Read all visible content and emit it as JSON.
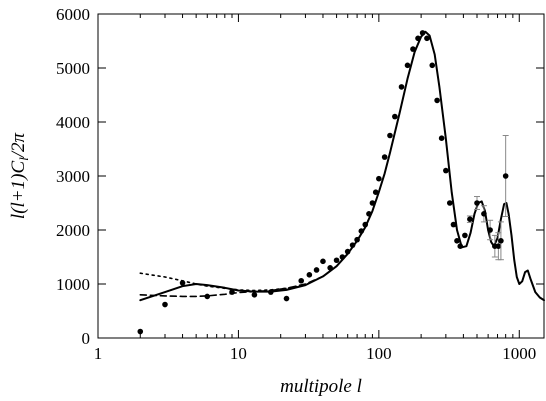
{
  "chart_data": {
    "type": "line",
    "title": "",
    "xlabel": "multipole  l",
    "ylabel": "l(l+1)C_l/2π",
    "ylabel_parts": {
      "main": "l(l+1)C",
      "sub": "l",
      "tail": "/2π"
    },
    "xscale": "log",
    "xlim": [
      1,
      1500
    ],
    "ylim": [
      0,
      6000
    ],
    "x_ticks": [
      1,
      10,
      100,
      1000
    ],
    "x_tick_labels": [
      "1",
      "10",
      "100",
      "1000"
    ],
    "y_ticks": [
      0,
      1000,
      2000,
      3000,
      4000,
      5000,
      6000
    ],
    "y_tick_labels": [
      "0",
      "1000",
      "2000",
      "3000",
      "4000",
      "5000",
      "6000"
    ],
    "grid": false,
    "legend": "none",
    "series": [
      {
        "style": "solid",
        "x": [
          2,
          3,
          4,
          5,
          6,
          8,
          10,
          13,
          17,
          22,
          30,
          40,
          50,
          60,
          70,
          80,
          90,
          100,
          110,
          120,
          140,
          160,
          180,
          200,
          215,
          230,
          250,
          270,
          300,
          330,
          360,
          390,
          420,
          450,
          480,
          510,
          540,
          570,
          600,
          630,
          660,
          700,
          740,
          780,
          810,
          840,
          880,
          920,
          960,
          1000,
          1050,
          1100,
          1150,
          1200,
          1300,
          1400,
          1500
        ],
        "y": [
          700,
          850,
          960,
          1000,
          980,
          930,
          880,
          860,
          860,
          890,
          980,
          1140,
          1330,
          1560,
          1800,
          2050,
          2350,
          2700,
          3050,
          3430,
          4150,
          4800,
          5300,
          5580,
          5670,
          5600,
          5250,
          4650,
          3700,
          2700,
          2000,
          1680,
          1700,
          1950,
          2300,
          2500,
          2530,
          2350,
          2000,
          1780,
          1700,
          1850,
          2200,
          2480,
          2500,
          2300,
          1900,
          1450,
          1130,
          1000,
          1050,
          1220,
          1250,
          1100,
          850,
          750,
          700
        ]
      },
      {
        "style": "dashed",
        "x": [
          2,
          3,
          4,
          5,
          6,
          8,
          10,
          13,
          17,
          22,
          30,
          40,
          50
        ],
        "y": [
          800,
          780,
          770,
          770,
          780,
          810,
          840,
          860,
          880,
          920,
          1000,
          1140,
          1330
        ]
      },
      {
        "style": "dotted",
        "x": [
          2,
          3,
          4,
          5,
          6,
          8,
          10,
          13,
          17,
          22,
          30
        ],
        "y": [
          1200,
          1130,
          1060,
          1000,
          960,
          920,
          890,
          880,
          890,
          920,
          980
        ]
      }
    ],
    "points": {
      "x": [
        2,
        3,
        4,
        6,
        9,
        13,
        17,
        22,
        28,
        32,
        36,
        40,
        45,
        50,
        55,
        60,
        65,
        70,
        75,
        80,
        85,
        90,
        95,
        100,
        110,
        120,
        130,
        145,
        160,
        175,
        190,
        205,
        220,
        240,
        260,
        280,
        300,
        320,
        340,
        360,
        380,
        410,
        445,
        500,
        560,
        620,
        670,
        710,
        740,
        800
      ],
      "y": [
        120,
        620,
        1020,
        770,
        850,
        800,
        850,
        730,
        1060,
        1170,
        1260,
        1420,
        1300,
        1440,
        1500,
        1600,
        1720,
        1820,
        1980,
        2100,
        2300,
        2500,
        2700,
        2950,
        3350,
        3750,
        4100,
        4650,
        5050,
        5350,
        5550,
        5650,
        5550,
        5050,
        4400,
        3700,
        3100,
        2500,
        2100,
        1800,
        1700,
        1900,
        2200,
        2500,
        2300,
        2000,
        1700,
        1700,
        1800,
        3000
      ],
      "errors": [
        0,
        0,
        0,
        0,
        0,
        0,
        0,
        0,
        0,
        0,
        0,
        0,
        0,
        0,
        0,
        0,
        0,
        0,
        0,
        0,
        0,
        0,
        0,
        0,
        0,
        0,
        0,
        0,
        0,
        0,
        0,
        0,
        0,
        0,
        0,
        0,
        0,
        0,
        0,
        0,
        0,
        0,
        60,
        120,
        150,
        180,
        200,
        250,
        350,
        750
      ]
    }
  }
}
